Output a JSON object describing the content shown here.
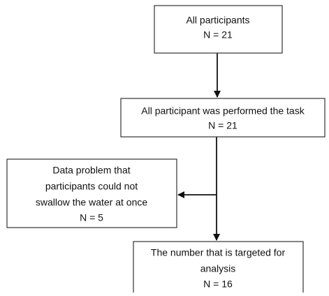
{
  "nodes": [
    {
      "lines": [
        "All participants",
        "N = 21"
      ]
    },
    {
      "lines": [
        "All participant was performed the task",
        "N = 21"
      ]
    },
    {
      "lines": [
        "Data problem that",
        "participants could not",
        "swallow the water at once",
        "N = 5"
      ]
    },
    {
      "lines": [
        "The number that is targeted for",
        "analysis",
        "N = 16"
      ]
    }
  ]
}
